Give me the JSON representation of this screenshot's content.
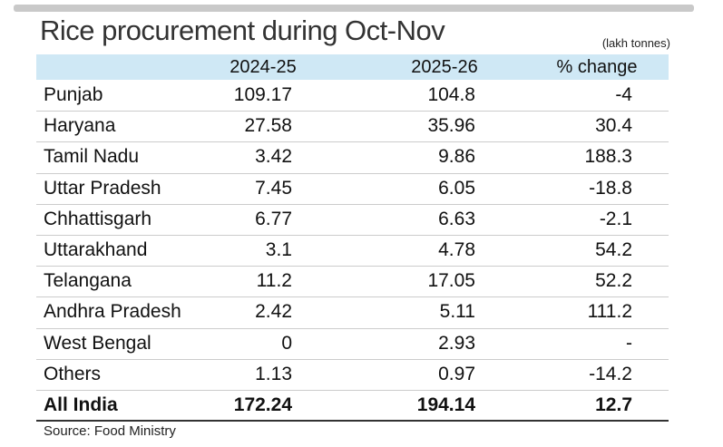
{
  "header": {
    "title": "Rice procurement during Oct-Nov",
    "unit": "(lakh tonnes)"
  },
  "table": {
    "columns": [
      "",
      "2024-25",
      "2025-26",
      "% change"
    ],
    "rows": [
      [
        "Punjab",
        "109.17",
        "104.8",
        "-4"
      ],
      [
        "Haryana",
        "27.58",
        "35.96",
        "30.4"
      ],
      [
        "Tamil Nadu",
        "3.42",
        "9.86",
        "188.3"
      ],
      [
        "Uttar Pradesh",
        "7.45",
        "6.05",
        "-18.8"
      ],
      [
        "Chhattisgarh",
        "6.77",
        "6.63",
        "-2.1"
      ],
      [
        "Uttarakhand",
        "3.1",
        "4.78",
        "54.2"
      ],
      [
        "Telangana",
        "11.2",
        "17.05",
        "52.2"
      ],
      [
        "Andhra Pradesh",
        "2.42",
        "5.11",
        "111.2"
      ],
      [
        "West Bengal",
        "0",
        "2.93",
        "-"
      ],
      [
        "Others",
        "1.13",
        "0.97",
        "-14.2"
      ],
      [
        "All India",
        "172.24",
        "194.14",
        "12.7"
      ]
    ]
  },
  "footer": {
    "source": "Source: Food Ministry"
  }
}
